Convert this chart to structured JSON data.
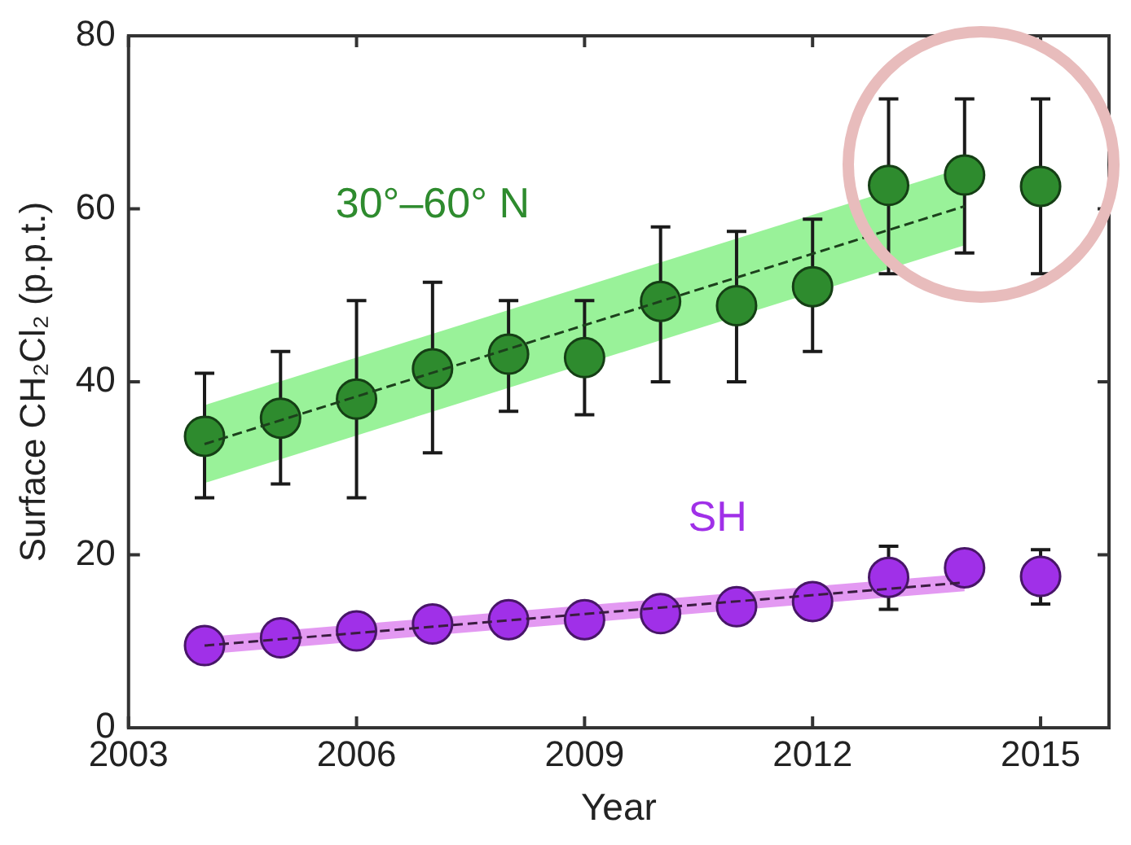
{
  "chart_data": {
    "type": "scatter",
    "xlabel": "Year",
    "ylabel": "Surface CH₂Cl₂ (p.p.t.)",
    "xlim": [
      2003,
      2015.9
    ],
    "xticks": [
      2003,
      2006,
      2009,
      2012,
      2015
    ],
    "ylim": [
      0,
      80
    ],
    "yticks": [
      0,
      20,
      40,
      60,
      80
    ],
    "marker": "circle",
    "series": [
      {
        "type": "line",
        "color": "#1c401c",
        "line_style": "dashed",
        "marker": "none",
        "x": [
          2004,
          2014
        ],
        "values": [
          32.8,
          60.3
        ],
        "lower": [
          28.3,
          55.8
        ],
        "upper": [
          37.3,
          64.8
        ]
      },
      {
        "type": "line",
        "color": "#3a1c40",
        "line_style": "dashed",
        "marker": "none",
        "x": [
          2004,
          2014
        ],
        "values": [
          9.5,
          16.8
        ],
        "lower": [
          8.5,
          15.8
        ],
        "upper": [
          10.5,
          17.8
        ]
      },
      {
        "name": "30°–60° N",
        "color": "#2e8b2e",
        "x": [
          2004,
          2005,
          2006,
          2007,
          2008,
          2009,
          2010,
          2011,
          2012,
          2013,
          2014,
          2015
        ],
        "values": [
          33.7,
          35.8,
          38,
          41.5,
          43.2,
          42.8,
          49.3,
          48.8,
          51,
          62.7,
          63.9,
          62.6
        ],
        "errors": [
          [
            26.6,
            41
          ],
          [
            28.2,
            43.5
          ],
          [
            26.6,
            49.4
          ],
          [
            31.8,
            51.5
          ],
          [
            36.6,
            49.4
          ],
          [
            36.2,
            49.4
          ],
          [
            40,
            57.9
          ],
          [
            40,
            57.4
          ],
          [
            43.5,
            58.8
          ],
          [
            52.5,
            72.7
          ],
          [
            54.9,
            72.7
          ],
          [
            52.5,
            72.7
          ]
        ]
      },
      {
        "name": "SH",
        "color": "#a030e8",
        "x": [
          2004,
          2005,
          2006,
          2007,
          2008,
          2009,
          2010,
          2011,
          2012,
          2013,
          2014,
          2015
        ],
        "values": [
          9.5,
          10.4,
          11.2,
          12,
          12.5,
          12.5,
          13.2,
          14,
          14.6,
          17.4,
          18.5,
          17.5
        ],
        "errors": [
          null,
          null,
          null,
          null,
          null,
          null,
          null,
          null,
          null,
          [
            13.7,
            21
          ],
          null,
          [
            14.3,
            20.6
          ]
        ]
      }
    ]
  }
}
